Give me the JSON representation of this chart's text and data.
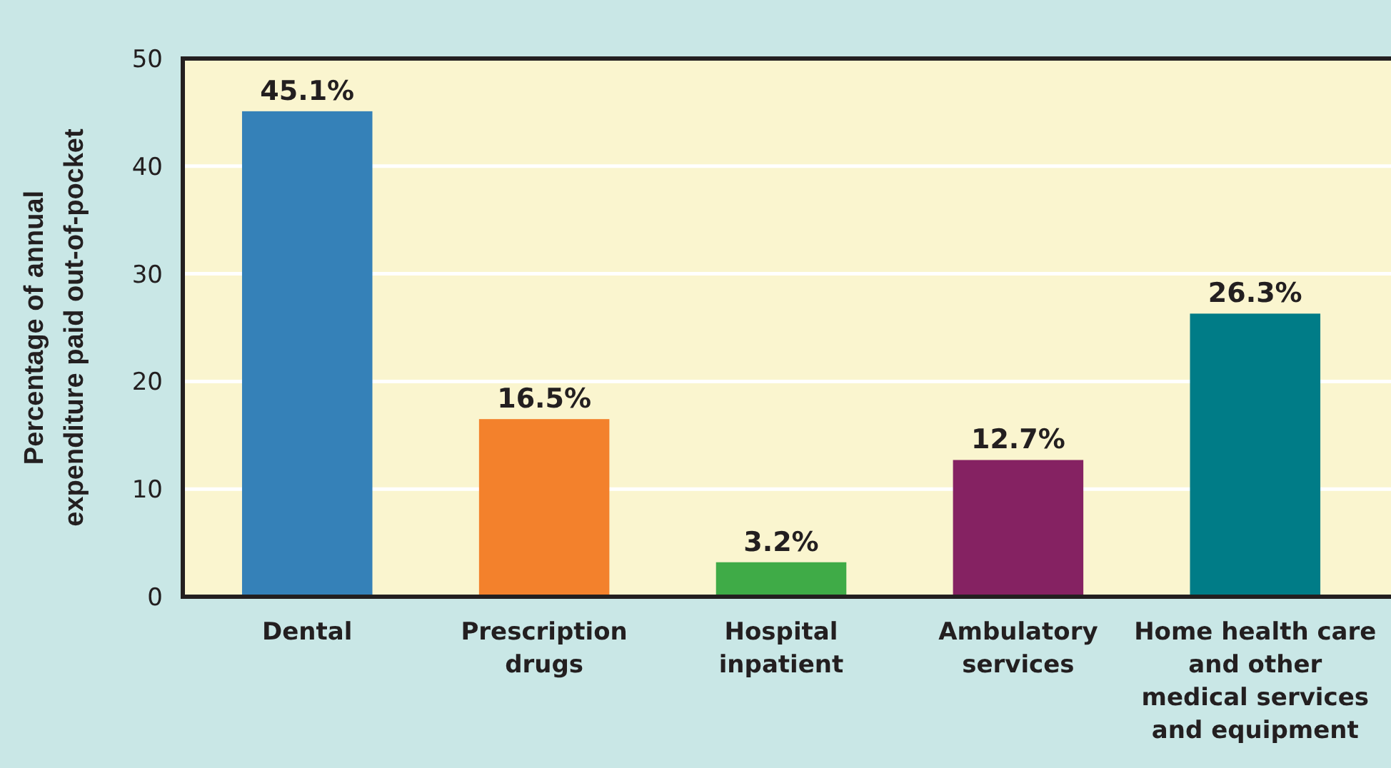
{
  "chart_data": {
    "type": "bar",
    "ylabel": "Percentage of annual expenditure paid out-of-pocket",
    "categories": [
      "Dental",
      "Prescription drugs",
      "Hospital inpatient",
      "Ambulatory services",
      "Home health care and other medical services and equipment"
    ],
    "values": [
      45.1,
      16.5,
      3.2,
      12.7,
      26.3
    ],
    "colors": [
      "#3581b8",
      "#f3812c",
      "#3fab47",
      "#852262",
      "#007c87"
    ],
    "value_labels": [
      "45.1%",
      "16.5%",
      "3.2%",
      "12.7%",
      "26.3%"
    ],
    "ylim": [
      0,
      50
    ],
    "yticks": [
      0,
      10,
      20,
      30,
      40,
      50
    ],
    "grid": "y"
  }
}
